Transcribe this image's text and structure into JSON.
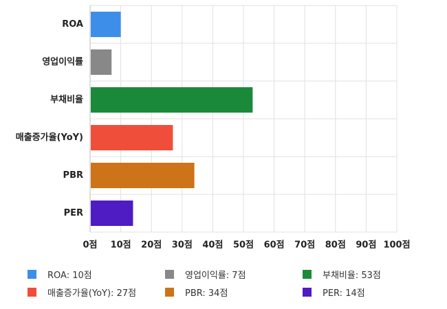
{
  "chart_data": {
    "type": "bar",
    "orientation": "horizontal",
    "categories": [
      "ROA",
      "영업이익률",
      "부채비율",
      "매출증가율(YoY)",
      "PBR",
      "PER"
    ],
    "values": [
      10,
      7,
      53,
      27,
      34,
      14
    ],
    "colors": [
      "#3d8ee8",
      "#888888",
      "#1a8a3a",
      "#ef4f3a",
      "#cd7418",
      "#4f1bc2"
    ],
    "xlim": [
      0,
      100
    ],
    "xticks": [
      "0점",
      "10점",
      "20점",
      "30점",
      "40점",
      "50점",
      "60점",
      "70점",
      "80점",
      "90점",
      "100점"
    ],
    "grid": true,
    "legend_position": "bottom",
    "legend": [
      {
        "label": "ROA: 10점",
        "color": "#3d8ee8"
      },
      {
        "label": "영업이익률: 7점",
        "color": "#888888"
      },
      {
        "label": "부채비율: 53점",
        "color": "#1a8a3a"
      },
      {
        "label": "매출증가율(YoY): 27점",
        "color": "#ef4f3a"
      },
      {
        "label": "PBR: 34점",
        "color": "#cd7418"
      },
      {
        "label": "PER: 14점",
        "color": "#4f1bc2"
      }
    ]
  }
}
